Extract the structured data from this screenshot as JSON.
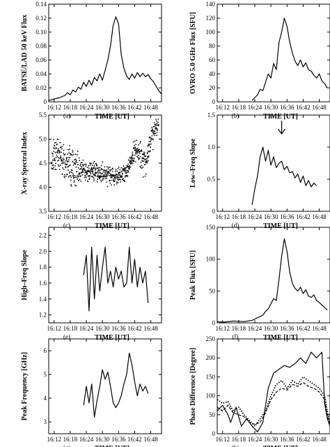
{
  "figure": {
    "x_tick_labels": [
      "16:12",
      "16:18",
      "16:24",
      "16:30",
      "16:36",
      "16:42",
      "16:48"
    ]
  },
  "chart_data": [
    {
      "id": "a",
      "type": "line",
      "panel_label": "(a)",
      "xlabel": "TIME [UT]",
      "ylabel": "BATSE/LAD 50 keV Flux",
      "xlim": [
        "16:10",
        "16:52"
      ],
      "ylim": [
        0,
        0.14
      ],
      "yticks": [
        0,
        0.02,
        0.04,
        0.06,
        0.08,
        0.1,
        0.12,
        0.14
      ],
      "ytick_labels": [
        "0",
        "0.02",
        "0.04",
        "0.06",
        "0.08",
        "0.10",
        "0.12",
        "0.14"
      ],
      "series": [
        {
          "x": [
            "16:10",
            "16:12",
            "16:14",
            "16:16",
            "16:17",
            "16:18",
            "16:19",
            "16:20",
            "16:21",
            "16:22",
            "16:23",
            "16:24",
            "16:25",
            "16:26",
            "16:27",
            "16:28",
            "16:29",
            "16:30",
            "16:31",
            "16:32",
            "16:33",
            "16:34",
            "16:35",
            "16:36",
            "16:37",
            "16:38",
            "16:39",
            "16:40",
            "16:41",
            "16:42",
            "16:43",
            "16:44",
            "16:45",
            "16:46",
            "16:47",
            "16:48",
            "16:49",
            "16:50",
            "16:51",
            "16:52"
          ],
          "y": [
            0.002,
            0.004,
            0.006,
            0.009,
            0.013,
            0.01,
            0.017,
            0.014,
            0.021,
            0.018,
            0.028,
            0.022,
            0.031,
            0.024,
            0.035,
            0.03,
            0.04,
            0.031,
            0.045,
            0.06,
            0.08,
            0.11,
            0.122,
            0.112,
            0.068,
            0.048,
            0.037,
            0.032,
            0.04,
            0.034,
            0.042,
            0.036,
            0.041,
            0.036,
            0.039,
            0.033,
            0.029,
            0.022,
            0.016,
            0.011
          ]
        }
      ]
    },
    {
      "id": "b",
      "type": "line",
      "panel_label": "(b)",
      "xlabel": "TIME [UT]",
      "ylabel": "OVRO 5.0 GHz Flux [SFU]",
      "xlim": [
        "16:10",
        "16:52"
      ],
      "ylim": [
        0,
        140
      ],
      "yticks": [
        0,
        20,
        40,
        60,
        80,
        100,
        120,
        140
      ],
      "ytick_labels": [
        "0",
        "20",
        "40",
        "60",
        "80",
        "100",
        "120",
        "140"
      ],
      "series": [
        {
          "x": [
            "16:23",
            "16:24",
            "16:25",
            "16:26",
            "16:27",
            "16:28",
            "16:29",
            "16:30",
            "16:31",
            "16:32",
            "16:33",
            "16:34",
            "16:35",
            "16:36",
            "16:37",
            "16:38",
            "16:39",
            "16:40",
            "16:41",
            "16:42",
            "16:43",
            "16:44",
            "16:45",
            "16:46",
            "16:47",
            "16:48",
            "16:49",
            "16:50",
            "16:51"
          ],
          "y": [
            2,
            6,
            10,
            18,
            16,
            28,
            40,
            34,
            55,
            46,
            85,
            100,
            120,
            108,
            86,
            70,
            58,
            52,
            60,
            50,
            56,
            46,
            44,
            38,
            34,
            40,
            30,
            26,
            20
          ]
        }
      ]
    },
    {
      "id": "c",
      "type": "scatter",
      "panel_label": "(c)",
      "xlabel": "TIME [UT]",
      "ylabel": "X-ray Spectral Index",
      "xlim": [
        "16:10",
        "16:52"
      ],
      "ylim": [
        3.5,
        5.5
      ],
      "yticks": [
        3.5,
        4.0,
        4.5,
        5.0,
        5.5
      ],
      "ytick_labels": [
        "3.5",
        "4.0",
        "4.5",
        "5.0",
        "5.5"
      ],
      "trend": {
        "x": [
          "16:11",
          "16:13",
          "16:15",
          "16:18",
          "16:21",
          "16:24",
          "16:27",
          "16:30",
          "16:33",
          "16:35",
          "16:37",
          "16:39",
          "16:41",
          "16:42",
          "16:44",
          "16:46",
          "16:48",
          "16:50",
          "16:51"
        ],
        "y": [
          4.55,
          4.75,
          4.6,
          4.45,
          4.35,
          4.32,
          4.35,
          4.28,
          4.25,
          4.2,
          4.25,
          4.3,
          4.6,
          4.78,
          4.7,
          4.5,
          4.95,
          5.3,
          5.45
        ]
      },
      "spread": 0.22
    },
    {
      "id": "d",
      "type": "line",
      "panel_label": "(d)",
      "xlabel": "TIME [UT]",
      "ylabel": "Low–Freq Slope",
      "xlim": [
        "16:10",
        "16:52"
      ],
      "ylim": [
        0,
        1.5
      ],
      "yticks": [
        0,
        0.5,
        1.0,
        1.5
      ],
      "ytick_labels": [
        "0",
        "0.5",
        "1.0",
        "1.5"
      ],
      "annotation": {
        "type": "arrow",
        "x": "16:34"
      },
      "series": [
        {
          "x": [
            "16:23",
            "16:24",
            "16:25",
            "16:26",
            "16:27",
            "16:28",
            "16:29",
            "16:30",
            "16:31",
            "16:32",
            "16:33",
            "16:34",
            "16:35",
            "16:36",
            "16:37",
            "16:38",
            "16:39",
            "16:40",
            "16:41",
            "16:42",
            "16:43",
            "16:44",
            "16:45",
            "16:46",
            "16:47"
          ],
          "y": [
            0.1,
            0.35,
            0.55,
            0.85,
            1.0,
            0.78,
            0.95,
            0.72,
            0.85,
            0.68,
            0.75,
            0.78,
            0.65,
            0.7,
            0.6,
            0.62,
            0.52,
            0.58,
            0.45,
            0.55,
            0.4,
            0.48,
            0.38,
            0.44,
            0.4
          ]
        }
      ]
    },
    {
      "id": "e",
      "type": "line",
      "panel_label": "(e)",
      "xlabel": "TIME [UT]",
      "ylabel": "High–Freq Slope",
      "xlim": [
        "16:10",
        "16:52"
      ],
      "ylim": [
        1.1,
        2.3
      ],
      "yticks": [
        1.2,
        1.4,
        1.6,
        1.8,
        2.0,
        2.2
      ],
      "ytick_labels": [
        "1.2",
        "1.4",
        "1.6",
        "1.8",
        "2.0",
        "2.2"
      ],
      "series": [
        {
          "x": [
            "16:23",
            "16:24",
            "16:25",
            "16:26",
            "16:27",
            "16:28",
            "16:29",
            "16:30",
            "16:31",
            "16:32",
            "16:33",
            "16:34",
            "16:35",
            "16:36",
            "16:37",
            "16:38",
            "16:39",
            "16:40",
            "16:41",
            "16:42",
            "16:43",
            "16:44",
            "16:45",
            "16:46",
            "16:47"
          ],
          "y": [
            1.7,
            1.95,
            1.25,
            2.05,
            1.4,
            1.95,
            1.5,
            1.8,
            2.05,
            1.6,
            1.75,
            1.55,
            1.8,
            1.65,
            1.75,
            1.55,
            1.6,
            2.05,
            1.6,
            1.9,
            1.55,
            1.8,
            1.6,
            1.75,
            1.35
          ]
        }
      ]
    },
    {
      "id": "f",
      "type": "line",
      "panel_label": "(f)",
      "xlabel": "TIME [UT]",
      "ylabel": "Peak Flux [SFU]",
      "xlim": [
        "16:10",
        "16:52"
      ],
      "ylim": [
        0,
        150
      ],
      "yticks": [
        0,
        50,
        100,
        150
      ],
      "ytick_labels": [
        "0",
        "50",
        "100",
        "150"
      ],
      "series": [
        {
          "x": [
            "16:10",
            "16:12",
            "16:16",
            "16:20",
            "16:23",
            "16:24",
            "16:26",
            "16:27",
            "16:28",
            "16:29",
            "16:30",
            "16:31",
            "16:32",
            "16:33",
            "16:34",
            "16:35",
            "16:36",
            "16:37",
            "16:38",
            "16:39",
            "16:40",
            "16:41",
            "16:42",
            "16:43",
            "16:44",
            "16:45",
            "16:46",
            "16:47",
            "16:48",
            "16:49",
            "16:50",
            "16:51"
          ],
          "y": [
            2,
            1,
            3,
            2,
            4,
            6,
            10,
            12,
            18,
            22,
            30,
            38,
            35,
            68,
            105,
            132,
            112,
            80,
            62,
            54,
            50,
            56,
            46,
            52,
            42,
            40,
            44,
            35,
            32,
            28,
            24,
            20
          ]
        }
      ]
    },
    {
      "id": "g",
      "type": "line",
      "panel_label": "(g)",
      "xlabel": "TIME [UT]",
      "ylabel": "Peak Frequency [GHz]",
      "xlim": [
        "16:10",
        "16:52"
      ],
      "ylim": [
        2.5,
        6.5
      ],
      "yticks": [
        3,
        4,
        5,
        6
      ],
      "ytick_labels": [
        "3",
        "4",
        "5",
        "6"
      ],
      "series": [
        {
          "x": [
            "16:23",
            "16:24",
            "16:25",
            "16:26",
            "16:27",
            "16:28",
            "16:29",
            "16:30",
            "16:31",
            "16:32",
            "16:33",
            "16:34",
            "16:35",
            "16:36",
            "16:37",
            "16:38",
            "16:39",
            "16:40",
            "16:41",
            "16:42",
            "16:43",
            "16:44",
            "16:45",
            "16:46",
            "16:47"
          ],
          "y": [
            3.7,
            4.5,
            3.8,
            4.6,
            3.2,
            3.9,
            4.5,
            5.2,
            4.8,
            5.1,
            4.5,
            3.8,
            3.6,
            3.8,
            4.1,
            4.6,
            5.0,
            5.9,
            5.4,
            4.7,
            4.1,
            4.6,
            4.3,
            4.5,
            4.2
          ]
        }
      ]
    },
    {
      "id": "h",
      "type": "line",
      "panel_label": "(h)",
      "xlabel": "TIME [UT]",
      "ylabel": "Phase Difference [Degree]",
      "xlim": [
        "16:10",
        "16:52"
      ],
      "ylim": [
        0,
        250
      ],
      "yticks": [
        0,
        50,
        100,
        150,
        200,
        250
      ],
      "ytick_labels": [
        "0",
        "50",
        "100",
        "150",
        "200",
        "250"
      ],
      "series": [
        {
          "style": "solid",
          "x": [
            "16:10",
            "16:12",
            "16:14",
            "16:15",
            "16:17",
            "16:19",
            "16:21",
            "16:23",
            "16:25",
            "16:27",
            "16:29",
            "16:31",
            "16:33",
            "16:35",
            "16:37",
            "16:39",
            "16:41",
            "16:43",
            "16:45",
            "16:47",
            "16:49",
            "16:50",
            "16:51",
            "16:52"
          ],
          "y": [
            60,
            75,
            50,
            30,
            70,
            20,
            40,
            20,
            5,
            30,
            120,
            160,
            170,
            180,
            175,
            185,
            200,
            185,
            215,
            200,
            215,
            80,
            40,
            20
          ]
        },
        {
          "style": "dotted",
          "x": [
            "16:10",
            "16:12",
            "16:14",
            "16:16",
            "16:18",
            "16:20",
            "16:22",
            "16:24",
            "16:26",
            "16:28",
            "16:30",
            "16:32",
            "16:34",
            "16:36",
            "16:38",
            "16:40",
            "16:42",
            "16:44",
            "16:46",
            "16:48",
            "16:50",
            "16:51",
            "16:52"
          ],
          "y": [
            90,
            80,
            85,
            60,
            70,
            50,
            35,
            20,
            40,
            60,
            100,
            130,
            140,
            120,
            140,
            130,
            150,
            140,
            130,
            120,
            100,
            60,
            30
          ]
        },
        {
          "style": "dashed",
          "x": [
            "16:10",
            "16:12",
            "16:14",
            "16:16",
            "16:18",
            "16:20",
            "16:22",
            "16:24",
            "16:26",
            "16:28",
            "16:30",
            "16:32",
            "16:34",
            "16:36",
            "16:38",
            "16:40",
            "16:42",
            "16:44",
            "16:46",
            "16:48",
            "16:50",
            "16:51",
            "16:52"
          ],
          "y": [
            70,
            60,
            75,
            55,
            50,
            45,
            30,
            25,
            30,
            55,
            90,
            110,
            120,
            115,
            130,
            125,
            135,
            125,
            120,
            110,
            90,
            50,
            20
          ]
        }
      ]
    }
  ]
}
